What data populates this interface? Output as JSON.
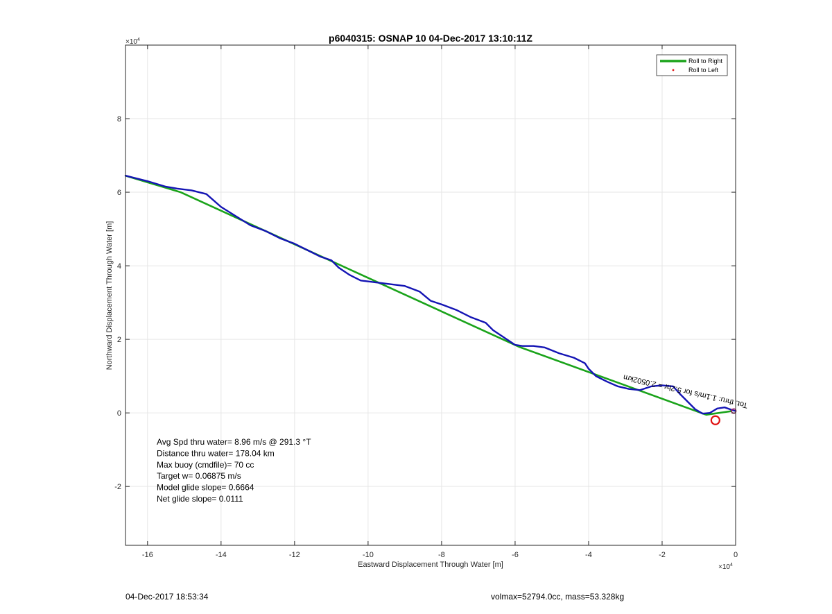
{
  "chart_data": {
    "type": "line",
    "title": "p6040315: OSNAP 10 04-Dec-2017 13:10:11Z",
    "xlabel": "Eastward Displacement Through Water [m]",
    "ylabel": "Northward Displacement Through Water [m]",
    "x_exponent_label": "×10",
    "x_exponent_power": "4",
    "y_exponent_label": "×10",
    "y_exponent_power": "4",
    "xlim": [
      -16.6,
      0
    ],
    "ylim": [
      -3.6,
      10
    ],
    "xticks": [
      -16,
      -14,
      -12,
      -10,
      -8,
      -6,
      -4,
      -2,
      0
    ],
    "yticks": [
      -2,
      0,
      2,
      4,
      6,
      8
    ],
    "xtick_labels": [
      "-16",
      "-14",
      "-12",
      "-10",
      "-8",
      "-6",
      "-4",
      "-2",
      "0"
    ],
    "ytick_labels": [
      "-2",
      "0",
      "2",
      "4",
      "6",
      "8"
    ],
    "grid": true,
    "legend_position": "top-right",
    "series": [
      {
        "name": "Roll to Right",
        "color": "#1aa31a",
        "x": [
          -16.6,
          -15.1,
          -5.9,
          -0.8,
          -0.1
        ],
        "y": [
          6.45,
          6.0,
          1.8,
          -0.05,
          0.05
        ]
      },
      {
        "name": "Roll to Left",
        "color": "#e01010",
        "marker": "dot",
        "x": [],
        "y": []
      },
      {
        "color": "#1414b4",
        "x": [
          -16.6,
          -16.0,
          -15.5,
          -15.2,
          -14.8,
          -14.4,
          -14.0,
          -13.6,
          -13.2,
          -12.8,
          -12.4,
          -12.0,
          -11.6,
          -11.3,
          -11.0,
          -10.8,
          -10.5,
          -10.2,
          -9.8,
          -9.4,
          -9.0,
          -8.6,
          -8.3,
          -8.0,
          -7.6,
          -7.2,
          -6.8,
          -6.6,
          -6.3,
          -6.0,
          -5.8,
          -5.5,
          -5.2,
          -4.8,
          -4.4,
          -4.1,
          -4.0,
          -3.8,
          -3.5,
          -3.2,
          -2.9,
          -2.6,
          -2.3,
          -2.0,
          -1.7,
          -1.5,
          -1.3,
          -1.1,
          -0.9,
          -0.7,
          -0.5,
          -0.3,
          -0.1,
          0.0
        ],
        "y": [
          6.45,
          6.3,
          6.15,
          6.1,
          6.05,
          5.95,
          5.6,
          5.35,
          5.1,
          4.95,
          4.75,
          4.6,
          4.4,
          4.25,
          4.15,
          3.95,
          3.75,
          3.6,
          3.55,
          3.5,
          3.45,
          3.3,
          3.05,
          2.95,
          2.8,
          2.6,
          2.45,
          2.25,
          2.05,
          1.85,
          1.82,
          1.82,
          1.78,
          1.62,
          1.5,
          1.35,
          1.2,
          1.0,
          0.85,
          0.72,
          0.65,
          0.62,
          0.72,
          0.75,
          0.72,
          0.5,
          0.3,
          0.1,
          -0.02,
          0.0,
          0.12,
          0.15,
          0.08,
          0.05
        ]
      }
    ],
    "circle_marker": {
      "color": "#e01010",
      "x": -0.55,
      "y": -0.2
    },
    "end_marker": {
      "color": "#a02060",
      "x": -0.05,
      "y": 0.05
    },
    "rotated_annotation": "Tot. thru: 1.1m/s for 5.2hr = 2.0502km",
    "stats": [
      "Avg Spd thru water=  8.96 m/s @ 291.3 °T",
      "Distance thru water= 178.04 km",
      "Max buoy (cmdfile)= 70 cc",
      "Target w= 0.06875 m/s",
      "Model glide slope= 0.6664",
      "Net glide slope= 0.0111"
    ]
  },
  "footer": {
    "timestamp": "04-Dec-2017 18:53:34",
    "volmax": "volmax=52794.0cc, mass=53.328kg"
  }
}
